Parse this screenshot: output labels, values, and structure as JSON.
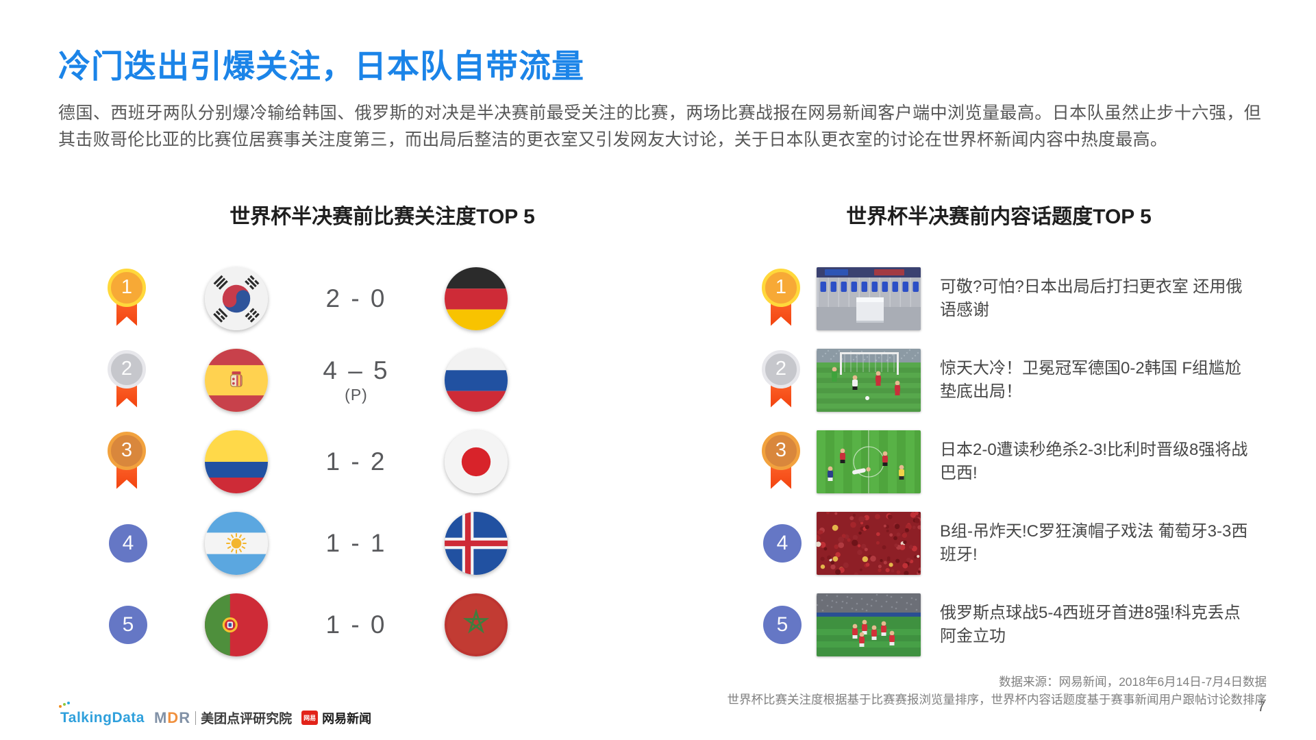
{
  "slide": {
    "title": "冷门迭出引爆关注，日本队自带流量",
    "paragraph": "德国、西班牙两队分别爆冷输给韩国、俄罗斯的对决是半决赛前最受关注的比赛，两场比赛战报在网易新闻客户端中浏览量最高。日本队虽然止步十六强，但其击败哥伦比亚的比赛位居赛事关注度第三，而出局后整洁的更衣室又引发网友大讨论，关于日本队更衣室的讨论在世界杯新闻内容中热度最高。",
    "page_number": "7"
  },
  "left_panel": {
    "header": "世界杯半决赛前比赛关注度TOP 5",
    "rows": [
      {
        "rank": "1",
        "medal": "gold",
        "team1": "south-korea",
        "score": "2 - 0",
        "score_note": "",
        "team2": "germany"
      },
      {
        "rank": "2",
        "medal": "silver",
        "team1": "spain",
        "score": "4 – 5",
        "score_note": "(P)",
        "team2": "russia"
      },
      {
        "rank": "3",
        "medal": "bronze",
        "team1": "colombia",
        "score": "1 - 2",
        "score_note": "",
        "team2": "japan"
      },
      {
        "rank": "4",
        "medal": "plain",
        "team1": "argentina",
        "score": "1 - 1",
        "score_note": "",
        "team2": "iceland"
      },
      {
        "rank": "5",
        "medal": "plain",
        "team1": "portugal",
        "score": "1 - 0",
        "score_note": "",
        "team2": "morocco"
      }
    ]
  },
  "right_panel": {
    "header": "世界杯半决赛前内容话题度TOP 5",
    "items": [
      {
        "rank": "1",
        "medal": "gold",
        "thumbnail": "japan-locker-room",
        "title": "可敬?可怕?日本出局后打扫更衣室 还用俄语感谢"
      },
      {
        "rank": "2",
        "medal": "silver",
        "thumbnail": "germany-korea-goal",
        "title": "惊天大冷！卫冕冠军德国0-2韩国 F组尴尬垫底出局！"
      },
      {
        "rank": "3",
        "medal": "bronze",
        "thumbnail": "japan-belgium-pitch",
        "title": "日本2-0遭读秒绝杀2-3!比利时晋级8强将战巴西!"
      },
      {
        "rank": "4",
        "medal": "plain",
        "thumbnail": "portugal-spain-fans",
        "title": "B组-吊炸天!C罗狂演帽子戏法 葡萄牙3-3西班牙!"
      },
      {
        "rank": "5",
        "medal": "plain",
        "thumbnail": "russia-spain-celebration",
        "title": "俄罗斯点球战5-4西班牙首进8强!科克丢点阿金立功"
      }
    ]
  },
  "footer": {
    "source_line1": "数据来源：网易新闻，2018年6月14日-7月4日数据",
    "source_line2": "世界杯比赛关注度根据基于比赛赛报浏览量排序，世界杯内容话题度基于赛事新闻用户跟帖讨论数排序",
    "logos": {
      "talkingdata": "TalkingData",
      "mdr": "MDR",
      "meituan_research": "美团点评研究院",
      "netease_badge": "网易",
      "netease_news": "网易新闻"
    }
  },
  "colors": {
    "title_blue": "#1B84E8",
    "body_text": "#575757",
    "rank_plain_blue": "#6577C5",
    "medal_ribbon": "#FF5126"
  }
}
